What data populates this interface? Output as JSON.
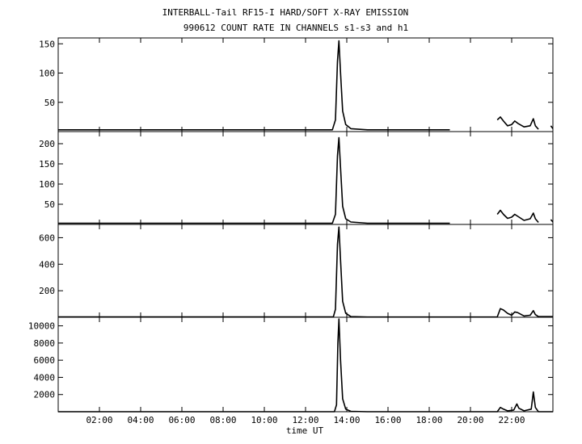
{
  "chart_data": {
    "type": "line",
    "title": "INTERBALL-Tail RF15-I HARD/SOFT X-RAY EMISSION",
    "subtitle": "990612  COUNT RATE IN CHANNELS s1-s3 and h1",
    "xlabel": "time UT",
    "x_unit": "hours UT",
    "xlim": [
      0,
      24
    ],
    "x_ticks": [
      {
        "value": 2,
        "label": "02:00"
      },
      {
        "value": 4,
        "label": "04:00"
      },
      {
        "value": 6,
        "label": "06:00"
      },
      {
        "value": 8,
        "label": "08:00"
      },
      {
        "value": 10,
        "label": "10:00"
      },
      {
        "value": 12,
        "label": "12:00"
      },
      {
        "value": 14,
        "label": "14:00"
      },
      {
        "value": 16,
        "label": "16:00"
      },
      {
        "value": 18,
        "label": "18:00"
      },
      {
        "value": 20,
        "label": "20:00"
      },
      {
        "value": 22,
        "label": "22:00"
      }
    ],
    "grid": false,
    "color": "#000000",
    "panels": [
      {
        "ylim": [
          0,
          160
        ],
        "y_ticks": [
          50,
          100,
          150
        ],
        "points": [
          [
            0,
            3
          ],
          [
            1,
            3
          ],
          [
            2,
            3
          ],
          [
            3,
            3
          ],
          [
            4,
            3
          ],
          [
            5,
            3
          ],
          [
            6,
            3
          ],
          [
            7,
            3
          ],
          [
            8,
            3
          ],
          [
            9,
            3
          ],
          [
            10,
            3
          ],
          [
            11,
            3
          ],
          [
            12,
            3
          ],
          [
            13,
            3
          ],
          [
            13.3,
            3
          ],
          [
            13.45,
            20
          ],
          [
            13.55,
            120
          ],
          [
            13.62,
            155
          ],
          [
            13.7,
            100
          ],
          [
            13.8,
            35
          ],
          [
            13.95,
            12
          ],
          [
            14.2,
            5
          ],
          [
            15,
            3
          ],
          [
            16,
            3
          ],
          [
            17,
            3
          ],
          [
            18,
            3
          ],
          [
            19,
            3
          ],
          [
            21.3,
            20
          ],
          [
            21.45,
            25
          ],
          [
            21.6,
            18
          ],
          [
            21.8,
            10
          ],
          [
            22,
            12
          ],
          [
            22.15,
            18
          ],
          [
            22.3,
            14
          ],
          [
            22.6,
            8
          ],
          [
            22.9,
            10
          ],
          [
            23.05,
            22
          ],
          [
            23.15,
            10
          ],
          [
            23.3,
            4
          ],
          [
            23.9,
            10
          ],
          [
            24,
            5
          ]
        ],
        "gaps_after": [
          19,
          23.3
        ]
      },
      {
        "ylim": [
          0,
          230
        ],
        "y_ticks": [
          50,
          100,
          150,
          200
        ],
        "points": [
          [
            0,
            3
          ],
          [
            1,
            3
          ],
          [
            2,
            3
          ],
          [
            3,
            3
          ],
          [
            4,
            3
          ],
          [
            5,
            3
          ],
          [
            6,
            3
          ],
          [
            7,
            3
          ],
          [
            8,
            3
          ],
          [
            9,
            3
          ],
          [
            10,
            3
          ],
          [
            11,
            3
          ],
          [
            12,
            3
          ],
          [
            13,
            3
          ],
          [
            13.3,
            3
          ],
          [
            13.45,
            25
          ],
          [
            13.55,
            170
          ],
          [
            13.62,
            215
          ],
          [
            13.7,
            140
          ],
          [
            13.8,
            45
          ],
          [
            13.95,
            14
          ],
          [
            14.2,
            6
          ],
          [
            15,
            3
          ],
          [
            16,
            3
          ],
          [
            17,
            3
          ],
          [
            18,
            3
          ],
          [
            19,
            3
          ],
          [
            21.3,
            25
          ],
          [
            21.45,
            35
          ],
          [
            21.6,
            25
          ],
          [
            21.8,
            15
          ],
          [
            22,
            18
          ],
          [
            22.15,
            25
          ],
          [
            22.3,
            20
          ],
          [
            22.6,
            10
          ],
          [
            22.9,
            14
          ],
          [
            23.05,
            28
          ],
          [
            23.15,
            14
          ],
          [
            23.3,
            5
          ],
          [
            23.9,
            12
          ],
          [
            24,
            6
          ]
        ],
        "gaps_after": [
          19,
          23.3
        ]
      },
      {
        "ylim": [
          0,
          700
        ],
        "y_ticks": [
          200,
          400,
          600
        ],
        "points": [
          [
            0,
            3
          ],
          [
            13.35,
            3
          ],
          [
            13.45,
            60
          ],
          [
            13.55,
            550
          ],
          [
            13.62,
            680
          ],
          [
            13.7,
            430
          ],
          [
            13.8,
            120
          ],
          [
            13.95,
            30
          ],
          [
            14.2,
            5
          ],
          [
            15,
            2
          ],
          [
            21.3,
            3
          ],
          [
            21.45,
            65
          ],
          [
            21.6,
            55
          ],
          [
            21.8,
            30
          ],
          [
            22,
            15
          ],
          [
            22.15,
            40
          ],
          [
            22.3,
            35
          ],
          [
            22.6,
            10
          ],
          [
            22.9,
            15
          ],
          [
            23.05,
            50
          ],
          [
            23.15,
            20
          ],
          [
            23.3,
            5
          ],
          [
            24,
            5
          ]
        ],
        "gaps_after": []
      },
      {
        "ylim": [
          0,
          11000
        ],
        "y_ticks": [
          2000,
          4000,
          6000,
          8000,
          10000
        ],
        "points": [
          [
            0,
            0
          ],
          [
            13.4,
            0
          ],
          [
            13.5,
            800
          ],
          [
            13.57,
            8000
          ],
          [
            13.62,
            10800
          ],
          [
            13.7,
            6000
          ],
          [
            13.8,
            1500
          ],
          [
            13.95,
            300
          ],
          [
            14.2,
            50
          ],
          [
            15,
            0
          ],
          [
            21.3,
            0
          ],
          [
            21.45,
            500
          ],
          [
            21.6,
            300
          ],
          [
            21.8,
            100
          ],
          [
            22.1,
            200
          ],
          [
            22.25,
            900
          ],
          [
            22.35,
            400
          ],
          [
            22.6,
            100
          ],
          [
            22.95,
            300
          ],
          [
            23.05,
            2300
          ],
          [
            23.15,
            500
          ],
          [
            23.3,
            0
          ],
          [
            24,
            0
          ]
        ],
        "gaps_after": []
      }
    ]
  }
}
